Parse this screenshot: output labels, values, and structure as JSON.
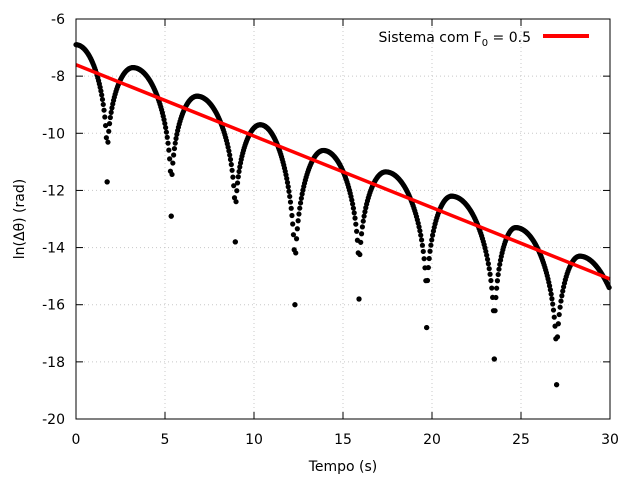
{
  "chart_data": {
    "type": "scatter",
    "xlabel": "Tempo (s)",
    "ylabel": "ln(Δθ) (rad)",
    "xlim": [
      0,
      30
    ],
    "ylim": [
      -20,
      -6
    ],
    "x_ticks": [
      0,
      5,
      10,
      15,
      20,
      25,
      30
    ],
    "y_ticks": [
      -20,
      -18,
      -16,
      -14,
      -12,
      -10,
      -8,
      -6
    ],
    "grid": true,
    "legend_placement": "top-right",
    "legend": {
      "prefix": "Sistema com F",
      "subscript": "0",
      "suffix": " = 0.5"
    },
    "fit_line": {
      "name": "Sistema com F0 = 0.5",
      "color": "#ff0000",
      "x": [
        0,
        30
      ],
      "y": [
        -7.6,
        -15.1
      ]
    },
    "points_color": "#000000",
    "data_envelope": {
      "description_free": true,
      "peaks": [
        {
          "x": 0.0,
          "y": -6.9
        },
        {
          "x": 3.2,
          "y": -7.7
        },
        {
          "x": 6.8,
          "y": -8.7
        },
        {
          "x": 10.35,
          "y": -9.7
        },
        {
          "x": 13.9,
          "y": -10.6
        },
        {
          "x": 17.4,
          "y": -11.35
        },
        {
          "x": 21.1,
          "y": -12.2
        },
        {
          "x": 24.7,
          "y": -13.3
        },
        {
          "x": 28.3,
          "y": -14.3
        }
      ],
      "troughs": [
        {
          "x": 1.75,
          "y": -11.7
        },
        {
          "x": 5.35,
          "y": -12.9
        },
        {
          "x": 8.95,
          "y": -13.8
        },
        {
          "x": 12.3,
          "y": -16.0
        },
        {
          "x": 15.9,
          "y": -15.8
        },
        {
          "x": 19.7,
          "y": -16.8
        },
        {
          "x": 23.5,
          "y": -17.9
        },
        {
          "x": 27.0,
          "y": -18.8
        }
      ],
      "end": {
        "x": 29.95,
        "y": -15.4
      }
    }
  }
}
